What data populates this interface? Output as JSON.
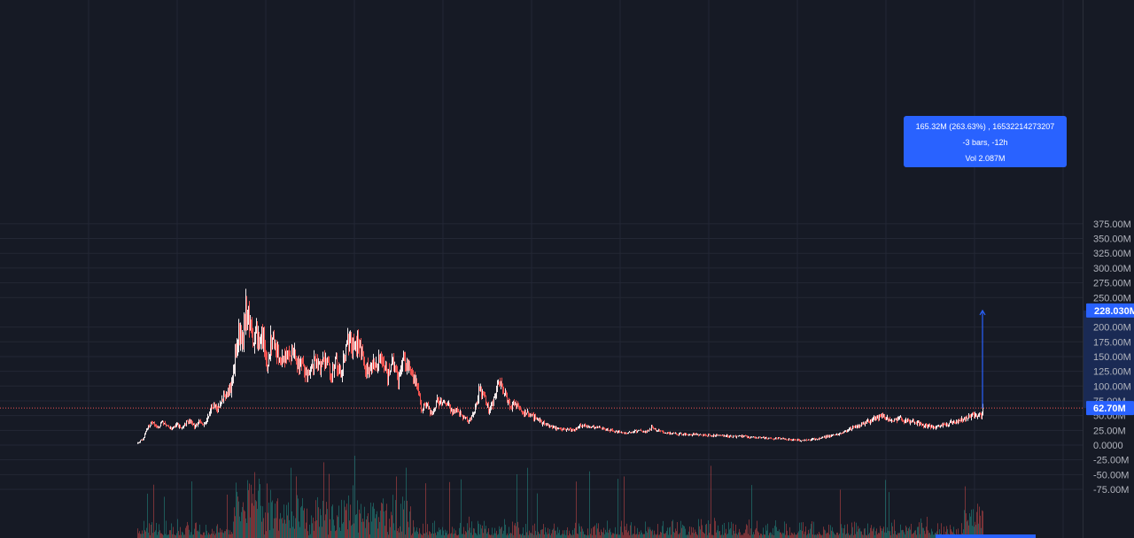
{
  "price_scale": {
    "tick_labels": [
      "375.00M",
      "350.00M",
      "325.00M",
      "300.00M",
      "275.00M",
      "250.00M",
      "200.00M",
      "175.00M",
      "150.00M",
      "125.00M",
      "100.00M",
      "75.00M",
      "50.00M",
      "25.00M",
      "0.0000",
      "-25.00M",
      "-50.00M",
      "-75.00M"
    ],
    "tick_values": [
      375,
      350,
      325,
      300,
      275,
      250,
      200,
      175,
      150,
      125,
      100,
      75,
      50,
      25,
      0,
      -25,
      -50,
      -75
    ],
    "last_price_label": "62.70M",
    "last_price_value": 62.7,
    "measure_target_label": "228.030M",
    "measure_target_value": 228.03
  },
  "measure_tooltip": {
    "line1": "165.32M (263.63%) , 16532214273207",
    "line2": "-3 bars, -12h",
    "line3": "Vol 2.087M"
  },
  "colors": {
    "background": "#161a25",
    "up": "#26a69a",
    "down": "#ef5350",
    "accent": "#2962ff",
    "last_price_line": "#ef5350"
  },
  "chart_data": {
    "type": "candlestick",
    "y_unit": "M",
    "ylim": [
      -75,
      375
    ],
    "close_path": [
      [
        0,
        2
      ],
      [
        3,
        7
      ],
      [
        6,
        10
      ],
      [
        10,
        27
      ],
      [
        16,
        40
      ],
      [
        22,
        30
      ],
      [
        28,
        38
      ],
      [
        36,
        28
      ],
      [
        44,
        35
      ],
      [
        50,
        30
      ],
      [
        58,
        42
      ],
      [
        64,
        32
      ],
      [
        70,
        40
      ],
      [
        76,
        35
      ],
      [
        82,
        60
      ],
      [
        86,
        70
      ],
      [
        90,
        60
      ],
      [
        96,
        78
      ],
      [
        102,
        88
      ],
      [
        106,
        100
      ],
      [
        110,
        150
      ],
      [
        114,
        190
      ],
      [
        118,
        170
      ],
      [
        122,
        235
      ],
      [
        126,
        205
      ],
      [
        130,
        180
      ],
      [
        134,
        200
      ],
      [
        138,
        160
      ],
      [
        142,
        190
      ],
      [
        146,
        130
      ],
      [
        150,
        175
      ],
      [
        154,
        170
      ],
      [
        158,
        150
      ],
      [
        164,
        140
      ],
      [
        170,
        165
      ],
      [
        176,
        150
      ],
      [
        182,
        140
      ],
      [
        188,
        130
      ],
      [
        194,
        115
      ],
      [
        200,
        145
      ],
      [
        206,
        130
      ],
      [
        212,
        150
      ],
      [
        218,
        120
      ],
      [
        224,
        140
      ],
      [
        230,
        125
      ],
      [
        236,
        170
      ],
      [
        240,
        180
      ],
      [
        244,
        160
      ],
      [
        250,
        170
      ],
      [
        256,
        135
      ],
      [
        262,
        120
      ],
      [
        266,
        145
      ],
      [
        272,
        140
      ],
      [
        276,
        150
      ],
      [
        282,
        115
      ],
      [
        288,
        145
      ],
      [
        294,
        110
      ],
      [
        300,
        155
      ],
      [
        306,
        130
      ],
      [
        312,
        110
      ],
      [
        316,
        100
      ],
      [
        320,
        60
      ],
      [
        326,
        70
      ],
      [
        332,
        50
      ],
      [
        338,
        75
      ],
      [
        344,
        70
      ],
      [
        350,
        68
      ],
      [
        356,
        55
      ],
      [
        362,
        60
      ],
      [
        368,
        45
      ],
      [
        374,
        40
      ],
      [
        380,
        55
      ],
      [
        386,
        95
      ],
      [
        392,
        80
      ],
      [
        396,
        60
      ],
      [
        402,
        75
      ],
      [
        408,
        105
      ],
      [
        414,
        90
      ],
      [
        420,
        65
      ],
      [
        426,
        70
      ],
      [
        432,
        60
      ],
      [
        438,
        55
      ],
      [
        444,
        50
      ],
      [
        450,
        45
      ],
      [
        456,
        38
      ],
      [
        462,
        35
      ],
      [
        468,
        30
      ],
      [
        474,
        28
      ],
      [
        480,
        27
      ],
      [
        486,
        26
      ],
      [
        492,
        24
      ],
      [
        498,
        32
      ],
      [
        504,
        35
      ],
      [
        510,
        30
      ],
      [
        518,
        30
      ],
      [
        526,
        28
      ],
      [
        534,
        25
      ],
      [
        542,
        22
      ],
      [
        550,
        20
      ],
      [
        558,
        22
      ],
      [
        566,
        24
      ],
      [
        574,
        22
      ],
      [
        580,
        30
      ],
      [
        586,
        25
      ],
      [
        592,
        22
      ],
      [
        600,
        20
      ],
      [
        610,
        19
      ],
      [
        620,
        18
      ],
      [
        630,
        18
      ],
      [
        640,
        17
      ],
      [
        650,
        16
      ],
      [
        660,
        17
      ],
      [
        670,
        14
      ],
      [
        680,
        15
      ],
      [
        690,
        14
      ],
      [
        700,
        13
      ],
      [
        710,
        12
      ],
      [
        720,
        11
      ],
      [
        730,
        10
      ],
      [
        740,
        8
      ],
      [
        750,
        8
      ],
      [
        760,
        9
      ],
      [
        770,
        12
      ],
      [
        780,
        15
      ],
      [
        790,
        18
      ],
      [
        800,
        25
      ],
      [
        808,
        30
      ],
      [
        816,
        35
      ],
      [
        824,
        40
      ],
      [
        832,
        45
      ],
      [
        840,
        48
      ],
      [
        846,
        45
      ],
      [
        852,
        40
      ],
      [
        858,
        46
      ],
      [
        864,
        43
      ],
      [
        870,
        39
      ],
      [
        876,
        40
      ],
      [
        882,
        36
      ],
      [
        888,
        33
      ],
      [
        894,
        32
      ],
      [
        900,
        30
      ],
      [
        906,
        33
      ],
      [
        912,
        35
      ],
      [
        918,
        38
      ],
      [
        924,
        40
      ],
      [
        930,
        43
      ],
      [
        936,
        45
      ],
      [
        942,
        50
      ],
      [
        948,
        50
      ],
      [
        952,
        52
      ],
      [
        954,
        62.7
      ]
    ],
    "measure": {
      "from_value": 62.7,
      "to_value": 228.03,
      "change": "165.32M",
      "percent": "263.63%",
      "bars": -3,
      "time": "-12h",
      "volume": "2.087M"
    },
    "legend": "none",
    "grid": true
  }
}
